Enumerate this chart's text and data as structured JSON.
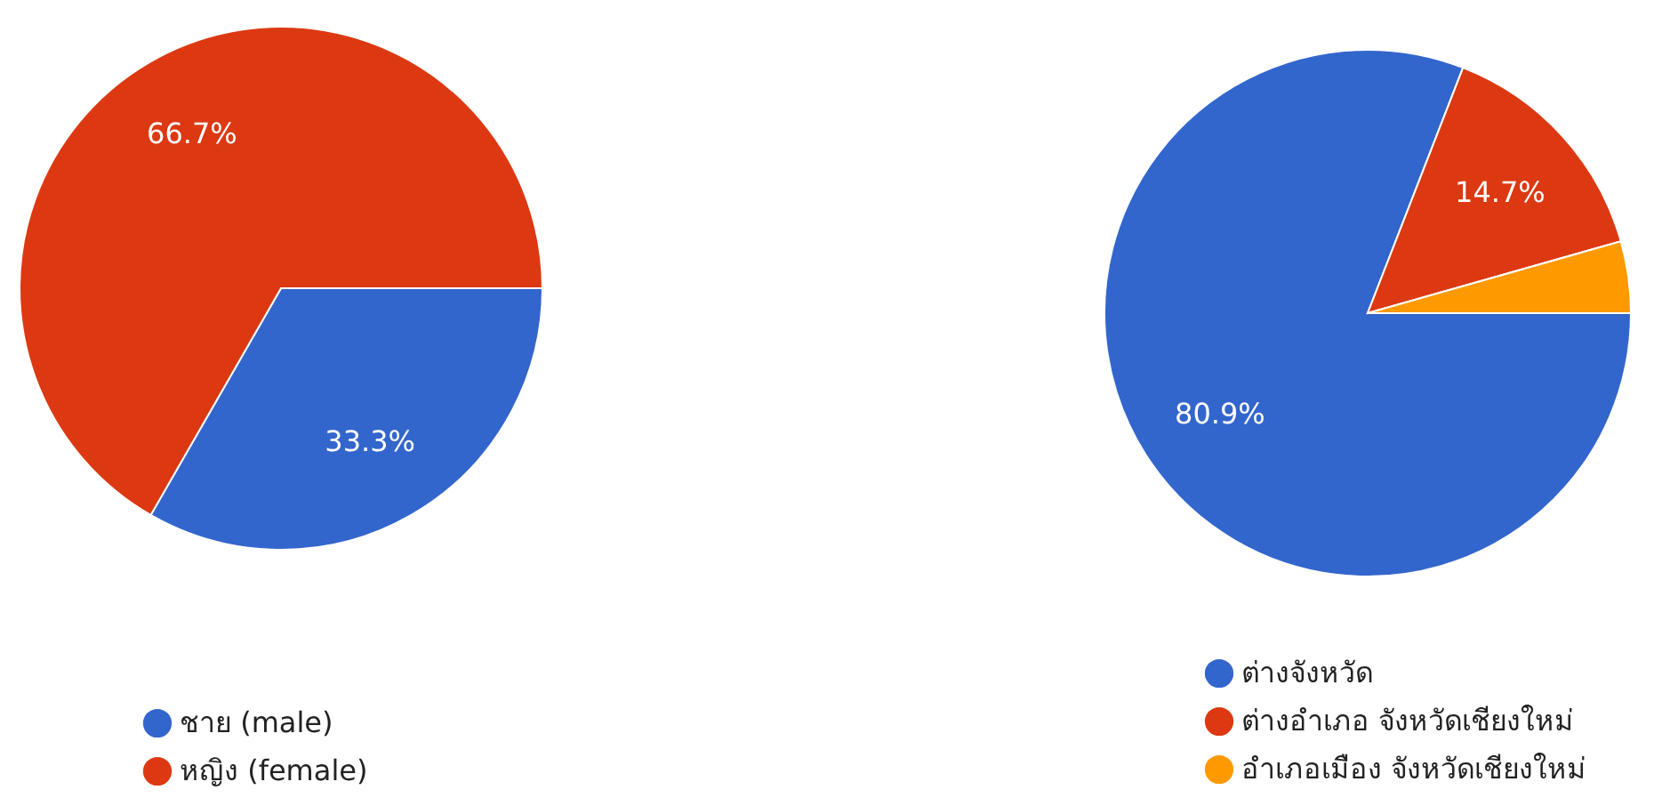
{
  "chart_data": [
    {
      "type": "pie",
      "categories": [
        "ชาย (male)",
        "หญิง (female)"
      ],
      "values": [
        33.3,
        66.7
      ],
      "colors": [
        "#3366cc",
        "#dc3912"
      ],
      "value_labels": [
        "33.3%",
        "66.7%"
      ],
      "legend": "bottom"
    },
    {
      "type": "pie",
      "categories": [
        "ต่างจังหวัด",
        "ต่างอำเภอ จังหวัดเชียงใหม่",
        "อำเภอเมือง จังหวัดเชียงใหม่"
      ],
      "values": [
        80.9,
        14.7,
        4.4
      ],
      "colors": [
        "#3366cc",
        "#dc3912",
        "#ff9900"
      ],
      "value_labels": [
        "80.9%",
        "14.7%",
        null
      ],
      "legend": "bottom"
    }
  ]
}
